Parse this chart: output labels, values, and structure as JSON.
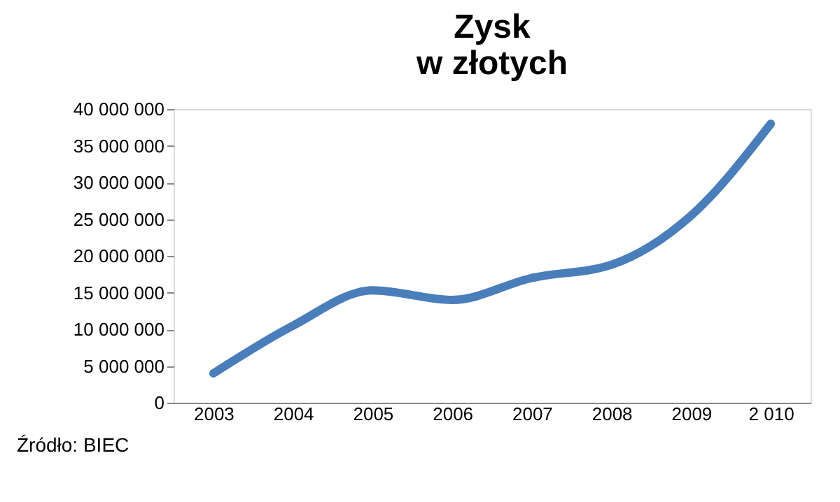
{
  "chart_data": {
    "type": "line",
    "title": "Zysk\nw złotych",
    "categories": [
      "2003",
      "2004",
      "2005",
      "2006",
      "2007",
      "2008",
      "2009",
      "2 010"
    ],
    "series": [
      {
        "color": "#4a7ebb",
        "values": [
          4000000,
          10500000,
          15300000,
          14000000,
          17000000,
          18800000,
          25500000,
          38000000
        ]
      }
    ],
    "ylim": [
      0,
      40000000
    ],
    "yticks": [
      0,
      {
        "value": 5000000,
        "label": "5 000 000"
      },
      {
        "value": 10000000,
        "label": "10 000 000"
      },
      {
        "value": 15000000,
        "label": "15 000 000"
      },
      {
        "value": 20000000,
        "label": "20 000 000"
      },
      {
        "value": 25000000,
        "label": "25 000 000"
      },
      {
        "value": 30000000,
        "label": "30 000 000"
      },
      {
        "value": 35000000,
        "label": "35 000 000"
      },
      {
        "value": 40000000,
        "label": "40 000 000"
      }
    ],
    "grid": false,
    "marker": "none",
    "line_style": "solid",
    "annotations": [
      "Źródło: BIEC"
    ]
  }
}
